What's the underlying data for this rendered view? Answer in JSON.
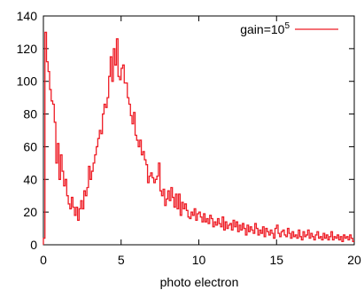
{
  "chart_data": {
    "type": "line",
    "title": "",
    "xlabel": "photo electron",
    "ylabel": "",
    "xlim": [
      0,
      20
    ],
    "ylim": [
      0,
      140
    ],
    "xticks": [
      "0",
      "5",
      "10",
      "15",
      "20"
    ],
    "yticks": [
      "0",
      "20",
      "40",
      "60",
      "80",
      "100",
      "120",
      "140"
    ],
    "grid": false,
    "legend_position": "top-right",
    "series_color": "#ee1c25",
    "series": [
      {
        "name_base": "gain=10",
        "name_sup": "5",
        "step": "histogram",
        "x": [
          0.0,
          0.1,
          0.2,
          0.3,
          0.4,
          0.5,
          0.6,
          0.7,
          0.8,
          0.9,
          1.0,
          1.1,
          1.2,
          1.3,
          1.4,
          1.5,
          1.6,
          1.7,
          1.8,
          1.9,
          2.0,
          2.1,
          2.2,
          2.3,
          2.4,
          2.5,
          2.6,
          2.7,
          2.8,
          2.9,
          3.0,
          3.1,
          3.2,
          3.3,
          3.4,
          3.5,
          3.6,
          3.7,
          3.8,
          3.9,
          4.0,
          4.1,
          4.2,
          4.3,
          4.4,
          4.5,
          4.6,
          4.7,
          4.8,
          4.9,
          5.0,
          5.1,
          5.2,
          5.3,
          5.4,
          5.5,
          5.6,
          5.7,
          5.8,
          5.9,
          6.0,
          6.1,
          6.2,
          6.3,
          6.4,
          6.5,
          6.6,
          6.7,
          6.8,
          6.9,
          7.0,
          7.1,
          7.2,
          7.3,
          7.4,
          7.5,
          7.6,
          7.7,
          7.8,
          7.9,
          8.0,
          8.1,
          8.2,
          8.3,
          8.4,
          8.5,
          8.6,
          8.7,
          8.8,
          8.9,
          9.0,
          9.1,
          9.2,
          9.3,
          9.4,
          9.5,
          9.6,
          9.7,
          9.8,
          9.9,
          10.0,
          10.1,
          10.2,
          10.3,
          10.4,
          10.5,
          10.6,
          10.7,
          10.8,
          10.9,
          11.0,
          11.1,
          11.2,
          11.3,
          11.4,
          11.5,
          11.6,
          11.7,
          11.8,
          11.9,
          12.0,
          12.1,
          12.2,
          12.3,
          12.4,
          12.5,
          12.6,
          12.7,
          12.8,
          12.9,
          13.0,
          13.1,
          13.2,
          13.3,
          13.4,
          13.5,
          13.6,
          13.7,
          13.8,
          13.9,
          14.0,
          14.1,
          14.2,
          14.3,
          14.4,
          14.5,
          14.6,
          14.7,
          14.8,
          14.9,
          15.0,
          15.1,
          15.2,
          15.3,
          15.4,
          15.5,
          15.6,
          15.7,
          15.8,
          15.9,
          16.0,
          16.1,
          16.2,
          16.3,
          16.4,
          16.5,
          16.6,
          16.7,
          16.8,
          16.9,
          17.0,
          17.1,
          17.2,
          17.3,
          17.4,
          17.5,
          17.6,
          17.7,
          17.8,
          17.9,
          18.0,
          18.1,
          18.2,
          18.3,
          18.4,
          18.5,
          18.6,
          18.7,
          18.8,
          18.9,
          19.0,
          19.1,
          19.2,
          19.3,
          19.4,
          19.5,
          19.6,
          19.7,
          19.8,
          19.9
        ],
        "y": [
          4,
          130,
          112,
          106,
          95,
          88,
          86,
          75,
          50,
          62,
          40,
          55,
          45,
          36,
          40,
          30,
          25,
          22,
          29,
          23,
          18,
          23,
          15,
          22,
          27,
          22,
          33,
          30,
          35,
          48,
          40,
          45,
          50,
          55,
          60,
          65,
          70,
          68,
          80,
          86,
          84,
          90,
          103,
          115,
          100,
          120,
          110,
          126,
          103,
          101,
          108,
          110,
          99,
          99,
          90,
          86,
          79,
          74,
          81,
          67,
          64,
          60,
          64,
          55,
          57,
          52,
          49,
          38,
          42,
          44,
          41,
          38,
          40,
          42,
          50,
          33,
          30,
          34,
          24,
          28,
          33,
          27,
          35,
          29,
          23,
          31,
          22,
          31,
          18,
          26,
          22,
          25,
          21,
          17,
          16,
          20,
          18,
          22,
          15,
          19,
          20,
          17,
          14,
          19,
          14,
          16,
          13,
          18,
          16,
          11,
          14,
          12,
          16,
          13,
          11,
          17,
          9,
          14,
          10,
          12,
          13,
          9,
          15,
          11,
          14,
          8,
          12,
          9,
          13,
          10,
          6,
          12,
          8,
          11,
          9,
          7,
          13,
          10,
          6,
          9,
          7,
          11,
          5,
          10,
          8,
          6,
          9,
          7,
          4,
          10,
          12,
          7,
          5,
          8,
          9,
          6,
          5,
          10,
          7,
          4,
          8,
          5,
          6,
          4,
          9,
          5,
          3,
          8,
          5,
          6,
          9,
          4,
          7,
          5,
          3,
          6,
          8,
          4,
          5,
          3,
          7,
          4,
          6,
          3,
          5,
          8,
          3,
          5,
          4,
          6,
          3,
          5,
          2,
          6,
          4,
          5,
          3,
          6,
          4,
          2
        ]
      }
    ]
  }
}
